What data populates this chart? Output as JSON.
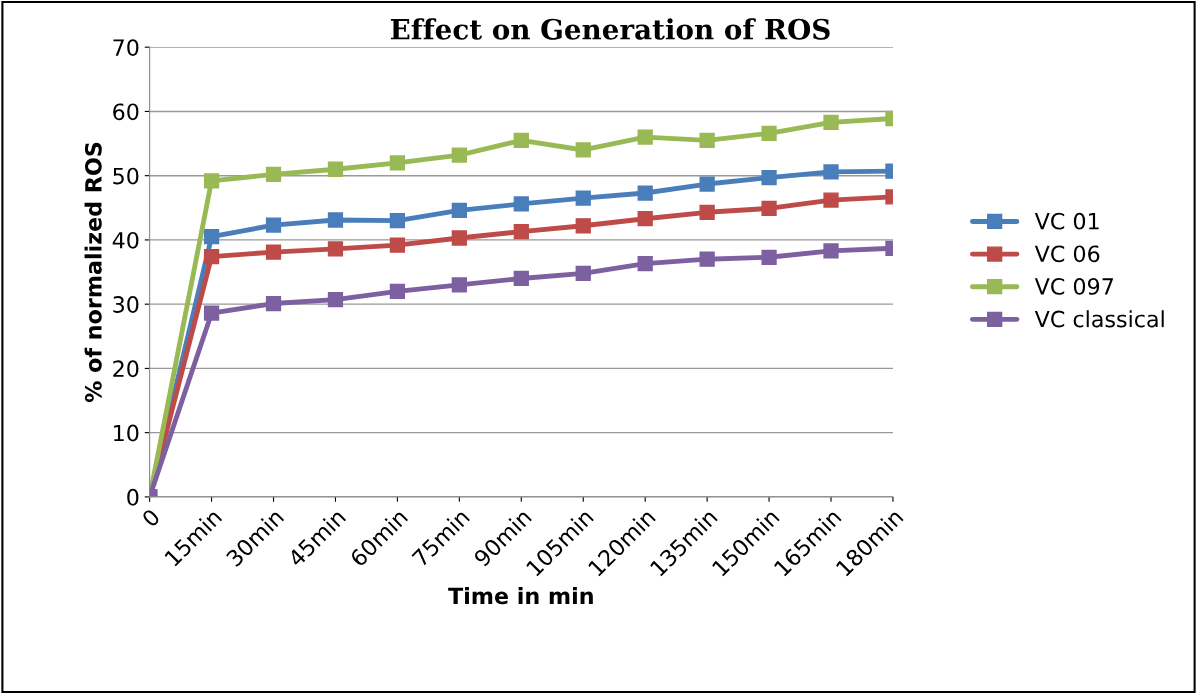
{
  "chart_data": {
    "type": "line",
    "title": "Effect on Generation of ROS",
    "xlabel": "Time in min",
    "ylabel": "% of normalized ROS",
    "categories": [
      "0",
      "15min",
      "30min",
      "45min",
      "60min",
      "75min",
      "90min",
      "105min",
      "120min",
      "135min",
      "150min",
      "165min",
      "180min"
    ],
    "series": [
      {
        "name": "VC 01",
        "color": "#4a7ebb",
        "values": [
          0,
          40.5,
          42.3,
          43.1,
          43.0,
          44.6,
          45.6,
          46.5,
          47.3,
          48.7,
          49.7,
          50.6,
          50.7
        ]
      },
      {
        "name": "VC 06",
        "color": "#be4b48",
        "values": [
          0,
          37.4,
          38.1,
          38.6,
          39.2,
          40.3,
          41.3,
          42.2,
          43.3,
          44.3,
          44.9,
          46.2,
          46.7
        ]
      },
      {
        "name": "VC 097",
        "color": "#98b954",
        "values": [
          0,
          49.2,
          50.2,
          51.0,
          52.0,
          53.2,
          55.5,
          54.0,
          56.0,
          55.5,
          56.6,
          58.3,
          58.9
        ]
      },
      {
        "name": "VC classical",
        "color": "#7d60a0",
        "values": [
          0,
          28.6,
          30.1,
          30.7,
          32.0,
          33.0,
          34.0,
          34.8,
          36.3,
          37.0,
          37.3,
          38.3,
          38.7
        ]
      }
    ],
    "ylim": [
      0,
      70
    ],
    "yticks": [
      0,
      10,
      20,
      30,
      40,
      50,
      60,
      70
    ],
    "grid": "y",
    "legend": "right",
    "marker": "square",
    "line_style": "solid"
  }
}
